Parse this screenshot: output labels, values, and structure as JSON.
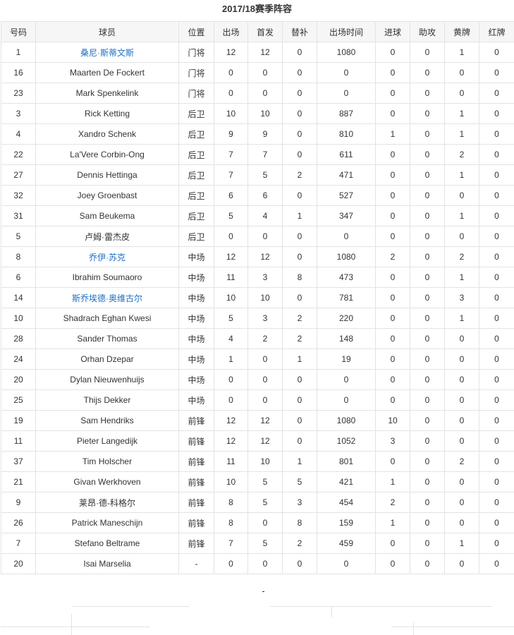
{
  "title": "2017/18赛季阵容",
  "columns": [
    "号码",
    "球员",
    "位置",
    "出场",
    "首发",
    "替补",
    "出场时间",
    "进球",
    "助攻",
    "黄牌",
    "红牌"
  ],
  "link_color": "#1f6fc2",
  "rows": [
    {
      "no": "1",
      "name": "桑尼·斯蒂文斯",
      "link": true,
      "pos": "门将",
      "apps": "12",
      "starts": "12",
      "subs": "0",
      "mins": "1080",
      "goals": "0",
      "assists": "0",
      "yellow": "1",
      "red": "0"
    },
    {
      "no": "16",
      "name": "Maarten De Fockert",
      "link": false,
      "pos": "门将",
      "apps": "0",
      "starts": "0",
      "subs": "0",
      "mins": "0",
      "goals": "0",
      "assists": "0",
      "yellow": "0",
      "red": "0"
    },
    {
      "no": "23",
      "name": "Mark Spenkelink",
      "link": false,
      "pos": "门将",
      "apps": "0",
      "starts": "0",
      "subs": "0",
      "mins": "0",
      "goals": "0",
      "assists": "0",
      "yellow": "0",
      "red": "0"
    },
    {
      "no": "3",
      "name": "Rick Ketting",
      "link": false,
      "pos": "后卫",
      "apps": "10",
      "starts": "10",
      "subs": "0",
      "mins": "887",
      "goals": "0",
      "assists": "0",
      "yellow": "1",
      "red": "0"
    },
    {
      "no": "4",
      "name": "Xandro Schenk",
      "link": false,
      "pos": "后卫",
      "apps": "9",
      "starts": "9",
      "subs": "0",
      "mins": "810",
      "goals": "1",
      "assists": "0",
      "yellow": "1",
      "red": "0"
    },
    {
      "no": "22",
      "name": "La'Vere Corbin-Ong",
      "link": false,
      "pos": "后卫",
      "apps": "7",
      "starts": "7",
      "subs": "0",
      "mins": "611",
      "goals": "0",
      "assists": "0",
      "yellow": "2",
      "red": "0"
    },
    {
      "no": "27",
      "name": "Dennis Hettinga",
      "link": false,
      "pos": "后卫",
      "apps": "7",
      "starts": "5",
      "subs": "2",
      "mins": "471",
      "goals": "0",
      "assists": "0",
      "yellow": "1",
      "red": "0"
    },
    {
      "no": "32",
      "name": "Joey Groenbast",
      "link": false,
      "pos": "后卫",
      "apps": "6",
      "starts": "6",
      "subs": "0",
      "mins": "527",
      "goals": "0",
      "assists": "0",
      "yellow": "0",
      "red": "0"
    },
    {
      "no": "31",
      "name": "Sam Beukema",
      "link": false,
      "pos": "后卫",
      "apps": "5",
      "starts": "4",
      "subs": "1",
      "mins": "347",
      "goals": "0",
      "assists": "0",
      "yellow": "1",
      "red": "0"
    },
    {
      "no": "5",
      "name": "卢姆·雷杰皮",
      "link": false,
      "pos": "后卫",
      "apps": "0",
      "starts": "0",
      "subs": "0",
      "mins": "0",
      "goals": "0",
      "assists": "0",
      "yellow": "0",
      "red": "0"
    },
    {
      "no": "8",
      "name": "乔伊·苏克",
      "link": true,
      "pos": "中场",
      "apps": "12",
      "starts": "12",
      "subs": "0",
      "mins": "1080",
      "goals": "2",
      "assists": "0",
      "yellow": "2",
      "red": "0"
    },
    {
      "no": "6",
      "name": "Ibrahim Soumaoro",
      "link": false,
      "pos": "中场",
      "apps": "11",
      "starts": "3",
      "subs": "8",
      "mins": "473",
      "goals": "0",
      "assists": "0",
      "yellow": "1",
      "red": "0"
    },
    {
      "no": "14",
      "name": "斯乔埃德·奥维古尔",
      "link": true,
      "pos": "中场",
      "apps": "10",
      "starts": "10",
      "subs": "0",
      "mins": "781",
      "goals": "0",
      "assists": "0",
      "yellow": "3",
      "red": "0"
    },
    {
      "no": "10",
      "name": "Shadrach Eghan Kwesi",
      "link": false,
      "pos": "中场",
      "apps": "5",
      "starts": "3",
      "subs": "2",
      "mins": "220",
      "goals": "0",
      "assists": "0",
      "yellow": "1",
      "red": "0"
    },
    {
      "no": "28",
      "name": "Sander Thomas",
      "link": false,
      "pos": "中场",
      "apps": "4",
      "starts": "2",
      "subs": "2",
      "mins": "148",
      "goals": "0",
      "assists": "0",
      "yellow": "0",
      "red": "0"
    },
    {
      "no": "24",
      "name": "Orhan Dzepar",
      "link": false,
      "pos": "中场",
      "apps": "1",
      "starts": "0",
      "subs": "1",
      "mins": "19",
      "goals": "0",
      "assists": "0",
      "yellow": "0",
      "red": "0"
    },
    {
      "no": "20",
      "name": "Dylan Nieuwenhuijs",
      "link": false,
      "pos": "中场",
      "apps": "0",
      "starts": "0",
      "subs": "0",
      "mins": "0",
      "goals": "0",
      "assists": "0",
      "yellow": "0",
      "red": "0"
    },
    {
      "no": "25",
      "name": "Thijs Dekker",
      "link": false,
      "pos": "中场",
      "apps": "0",
      "starts": "0",
      "subs": "0",
      "mins": "0",
      "goals": "0",
      "assists": "0",
      "yellow": "0",
      "red": "0"
    },
    {
      "no": "19",
      "name": "Sam Hendriks",
      "link": false,
      "pos": "前锋",
      "apps": "12",
      "starts": "12",
      "subs": "0",
      "mins": "1080",
      "goals": "10",
      "assists": "0",
      "yellow": "0",
      "red": "0"
    },
    {
      "no": "11",
      "name": "Pieter Langedijk",
      "link": false,
      "pos": "前锋",
      "apps": "12",
      "starts": "12",
      "subs": "0",
      "mins": "1052",
      "goals": "3",
      "assists": "0",
      "yellow": "0",
      "red": "0"
    },
    {
      "no": "37",
      "name": "Tim Holscher",
      "link": false,
      "pos": "前锋",
      "apps": "11",
      "starts": "10",
      "subs": "1",
      "mins": "801",
      "goals": "0",
      "assists": "0",
      "yellow": "2",
      "red": "0"
    },
    {
      "no": "21",
      "name": "Givan Werkhoven",
      "link": false,
      "pos": "前锋",
      "apps": "10",
      "starts": "5",
      "subs": "5",
      "mins": "421",
      "goals": "1",
      "assists": "0",
      "yellow": "0",
      "red": "0"
    },
    {
      "no": "9",
      "name": "莱昂·德-科格尔",
      "link": false,
      "pos": "前锋",
      "apps": "8",
      "starts": "5",
      "subs": "3",
      "mins": "454",
      "goals": "2",
      "assists": "0",
      "yellow": "0",
      "red": "0"
    },
    {
      "no": "26",
      "name": "Patrick Maneschijn",
      "link": false,
      "pos": "前锋",
      "apps": "8",
      "starts": "0",
      "subs": "8",
      "mins": "159",
      "goals": "1",
      "assists": "0",
      "yellow": "0",
      "red": "0"
    },
    {
      "no": "7",
      "name": "Stefano Beltrame",
      "link": false,
      "pos": "前锋",
      "apps": "7",
      "starts": "5",
      "subs": "2",
      "mins": "459",
      "goals": "0",
      "assists": "0",
      "yellow": "1",
      "red": "0"
    },
    {
      "no": "20",
      "name": "Isai Marselia",
      "link": false,
      "pos": "-",
      "apps": "0",
      "starts": "0",
      "subs": "0",
      "mins": "0",
      "goals": "0",
      "assists": "0",
      "yellow": "0",
      "red": "0"
    }
  ],
  "footer_dash": "-"
}
